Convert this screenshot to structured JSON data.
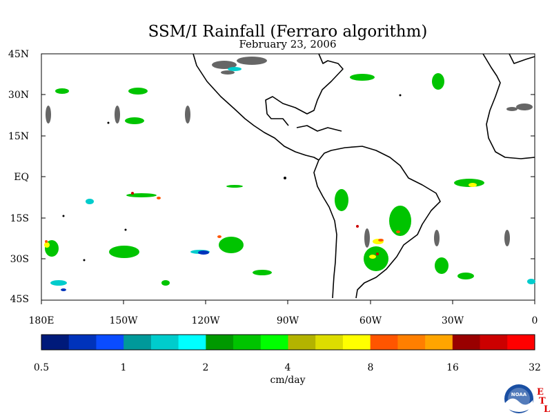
{
  "title": "SSM/I Rainfall (Ferraro algorithm)",
  "subtitle": "February 23, 2006",
  "y_ticks": [
    "45N",
    "30N",
    "15N",
    "EQ",
    "15S",
    "30S",
    "45S"
  ],
  "x_ticks": [
    "180E",
    "150W",
    "120W",
    "90W",
    "60W",
    "30W",
    "0"
  ],
  "colorbar": {
    "colors": [
      "#001a7a",
      "#0033bb",
      "#0a4cff",
      "#00999a",
      "#00cccc",
      "#00ffff",
      "#009900",
      "#00c400",
      "#00ff00",
      "#b3b300",
      "#dddd00",
      "#ffff00",
      "#ff5500",
      "#ff7f00",
      "#ffa500",
      "#990000",
      "#cc0000",
      "#ff0000"
    ],
    "labels": [
      "0.5",
      "1",
      "2",
      "4",
      "8",
      "16",
      "32"
    ],
    "unit": "cm/day"
  },
  "logo": {
    "text": "NOAA",
    "letters": [
      "E",
      "T",
      "L"
    ]
  },
  "colors": {
    "missing": "#666666",
    "land": "#000000"
  }
}
